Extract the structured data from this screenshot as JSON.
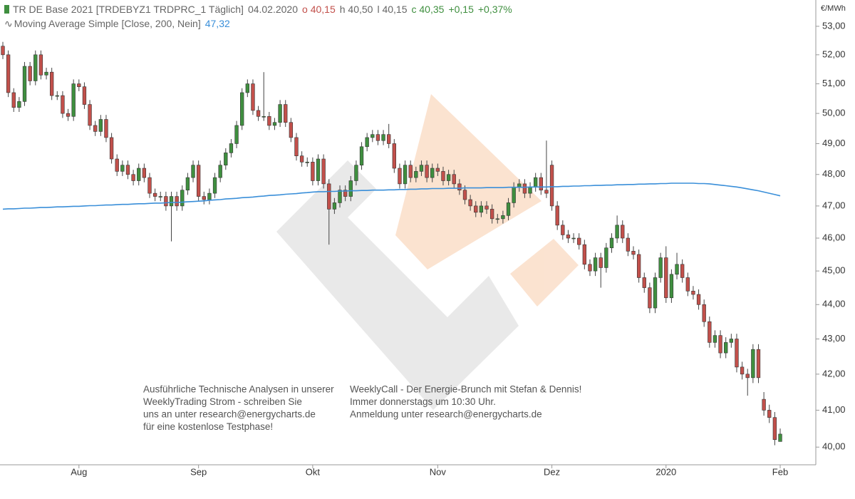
{
  "chart_data": {
    "type": "candlestick",
    "header": {
      "title": "TR DE Base 2021 [TRDEBYZ1 TRDPRC_1 Täglich]",
      "date": "04.02.2020",
      "open": {
        "value": 40.15,
        "label": "o 40,15"
      },
      "high": {
        "value": 40.5,
        "label": "h 40,50"
      },
      "low": {
        "value": 40.15,
        "label": "l 40,15"
      },
      "close": {
        "value": 40.35,
        "label": "c 40,35"
      },
      "change": {
        "value": 0.15,
        "label": "+0,15"
      },
      "change_pct": {
        "value": 0.37,
        "label": "+0,37%"
      }
    },
    "unit": "€/MWh",
    "log_scale": true,
    "up_color": "#3f8f3f",
    "down_color": "#c2504b",
    "grid": false,
    "categories": [
      null,
      null,
      null,
      null,
      null,
      null,
      null,
      null,
      null,
      null,
      null,
      null,
      null,
      null,
      "Aug",
      null,
      null,
      null,
      null,
      null,
      null,
      null,
      null,
      null,
      null,
      null,
      null,
      null,
      null,
      null,
      null,
      null,
      null,
      null,
      null,
      null,
      "Sep",
      null,
      null,
      null,
      null,
      null,
      null,
      null,
      null,
      null,
      null,
      null,
      null,
      null,
      null,
      null,
      null,
      null,
      null,
      null,
      null,
      "Okt",
      null,
      null,
      null,
      null,
      null,
      null,
      null,
      null,
      null,
      null,
      null,
      null,
      null,
      null,
      null,
      null,
      null,
      null,
      null,
      null,
      null,
      null,
      "Nov",
      null,
      null,
      null,
      null,
      null,
      null,
      null,
      null,
      null,
      null,
      null,
      null,
      null,
      null,
      null,
      null,
      null,
      null,
      null,
      null,
      "Dez",
      null,
      null,
      null,
      null,
      null,
      null,
      null,
      null,
      null,
      null,
      null,
      null,
      null,
      null,
      null,
      null,
      null,
      null,
      null,
      null,
      "2020",
      null,
      null,
      null,
      null,
      null,
      null,
      null,
      null,
      null,
      null,
      null,
      null,
      null,
      null,
      null,
      null,
      null,
      null,
      null,
      null,
      "Feb"
    ],
    "candles": {
      "open": [
        52.3,
        52.0,
        50.7,
        50.2,
        50.4,
        51.6,
        51.1,
        52.0,
        51.3,
        51.4,
        50.6,
        50.6,
        50.0,
        49.9,
        51.0,
        50.9,
        50.3,
        49.6,
        49.4,
        49.8,
        49.2,
        48.5,
        48.1,
        48.3,
        48.0,
        47.8,
        48.2,
        47.9,
        47.4,
        47.3,
        47.3,
        47.0,
        47.3,
        47.0,
        47.5,
        47.9,
        48.3,
        47.3,
        47.2,
        47.4,
        47.9,
        48.3,
        48.7,
        49.0,
        49.6,
        50.7,
        51.0,
        50.1,
        49.9,
        49.9,
        49.6,
        49.7,
        50.3,
        49.7,
        49.2,
        48.6,
        48.4,
        48.4,
        47.8,
        48.5,
        47.7,
        46.9,
        47.1,
        47.5,
        47.3,
        47.8,
        48.3,
        48.9,
        49.2,
        49.3,
        49.1,
        49.3,
        49.0,
        48.2,
        47.7,
        48.3,
        47.9,
        48.1,
        48.3,
        47.9,
        48.2,
        48.1,
        47.8,
        48.0,
        47.7,
        47.5,
        47.2,
        47.0,
        46.8,
        47.0,
        46.9,
        46.6,
        46.6,
        46.7,
        47.1,
        47.6,
        47.7,
        47.4,
        47.6,
        47.9,
        47.5,
        48.3,
        47.0,
        46.4,
        46.1,
        46.0,
        46.0,
        45.8,
        45.2,
        45.0,
        45.4,
        45.1,
        45.7,
        46.0,
        46.4,
        46.0,
        45.6,
        45.5,
        44.8,
        44.5,
        43.9,
        44.8,
        45.4,
        44.2,
        44.9,
        45.2,
        44.8,
        44.4,
        44.3,
        44.0,
        43.5,
        42.9,
        43.1,
        42.6,
        42.9,
        43.0,
        42.2,
        42.0,
        41.9,
        42.7,
        41.3,
        41.0,
        40.8,
        40.15
      ],
      "high": [
        52.45,
        52.15,
        50.85,
        50.55,
        51.75,
        51.75,
        52.15,
        52.15,
        51.55,
        51.55,
        50.75,
        50.75,
        50.15,
        51.15,
        51.15,
        51.05,
        50.45,
        49.75,
        49.95,
        49.95,
        49.35,
        48.65,
        48.45,
        48.45,
        48.15,
        48.35,
        48.35,
        48.05,
        47.55,
        47.45,
        47.45,
        47.45,
        47.45,
        47.65,
        48.05,
        48.45,
        48.45,
        47.45,
        47.55,
        48.05,
        48.45,
        48.85,
        49.15,
        49.75,
        50.85,
        51.15,
        51.15,
        50.25,
        51.4,
        50.05,
        49.85,
        50.45,
        50.45,
        49.85,
        49.35,
        48.75,
        48.55,
        48.55,
        48.65,
        48.65,
        47.85,
        47.25,
        47.65,
        47.65,
        47.95,
        48.45,
        49.05,
        49.35,
        49.45,
        49.45,
        49.45,
        49.65,
        49.15,
        48.35,
        48.45,
        48.45,
        48.25,
        48.45,
        48.45,
        48.35,
        48.35,
        48.25,
        48.15,
        48.15,
        47.85,
        47.65,
        47.35,
        47.15,
        47.15,
        47.15,
        47.05,
        46.75,
        46.85,
        47.25,
        47.75,
        47.85,
        47.85,
        47.75,
        48.05,
        48.05,
        49.1,
        48.45,
        47.15,
        46.55,
        46.25,
        46.15,
        46.15,
        45.95,
        45.35,
        45.55,
        45.55,
        45.85,
        46.15,
        46.7,
        46.55,
        46.15,
        45.75,
        45.65,
        44.95,
        44.65,
        44.95,
        45.55,
        45.75,
        45.05,
        45.55,
        45.35,
        44.95,
        44.55,
        44.45,
        44.15,
        43.65,
        43.25,
        43.25,
        43.05,
        43.15,
        43.15,
        42.35,
        42.15,
        42.85,
        42.85,
        41.5,
        41.15,
        40.95,
        40.5
      ],
      "low": [
        51.85,
        50.55,
        50.05,
        50.05,
        50.25,
        50.95,
        50.95,
        51.15,
        51.15,
        50.45,
        50.45,
        49.85,
        49.75,
        49.75,
        50.75,
        50.15,
        49.45,
        49.25,
        49.25,
        49.05,
        48.35,
        47.95,
        47.95,
        47.85,
        47.65,
        47.65,
        47.75,
        47.25,
        47.15,
        47.15,
        46.85,
        45.9,
        46.85,
        46.85,
        47.35,
        47.75,
        47.15,
        47.05,
        47.05,
        47.25,
        47.75,
        48.15,
        48.55,
        48.85,
        49.45,
        50.55,
        49.95,
        49.75,
        49.75,
        49.45,
        49.45,
        49.55,
        49.55,
        49.05,
        48.45,
        48.25,
        48.25,
        47.65,
        47.65,
        47.55,
        45.8,
        46.75,
        46.95,
        47.15,
        47.15,
        47.65,
        48.15,
        48.75,
        49.05,
        48.95,
        48.95,
        48.85,
        48.05,
        47.55,
        47.55,
        47.75,
        47.75,
        47.95,
        47.75,
        47.75,
        47.95,
        47.65,
        47.65,
        47.55,
        47.35,
        47.05,
        46.85,
        46.65,
        46.65,
        46.75,
        46.45,
        46.45,
        46.45,
        46.55,
        46.95,
        47.45,
        47.25,
        47.25,
        47.45,
        47.35,
        47.25,
        46.85,
        46.25,
        45.95,
        45.85,
        45.85,
        45.65,
        45.05,
        44.85,
        44.85,
        44.5,
        44.95,
        45.55,
        45.85,
        45.85,
        45.45,
        45.35,
        44.65,
        44.35,
        43.75,
        43.75,
        44.65,
        44.05,
        44.05,
        44.75,
        44.65,
        44.25,
        44.15,
        43.85,
        43.35,
        42.75,
        42.75,
        42.45,
        42.45,
        42.75,
        42.05,
        41.85,
        41.4,
        41.75,
        41.75,
        40.85,
        40.65,
        40.05,
        40.15
      ],
      "close": [
        52.0,
        50.7,
        50.2,
        50.4,
        51.6,
        51.1,
        52.0,
        51.3,
        51.4,
        50.6,
        50.6,
        50.0,
        49.9,
        51.0,
        50.9,
        50.3,
        49.6,
        49.4,
        49.8,
        49.2,
        48.5,
        48.1,
        48.3,
        48.0,
        47.8,
        48.2,
        47.9,
        47.4,
        47.3,
        47.3,
        47.0,
        47.3,
        47.0,
        47.5,
        47.9,
        48.3,
        47.3,
        47.2,
        47.4,
        47.9,
        48.3,
        48.7,
        49.0,
        49.6,
        50.7,
        51.0,
        50.1,
        49.9,
        49.9,
        49.6,
        49.7,
        50.3,
        49.7,
        49.2,
        48.6,
        48.4,
        48.4,
        47.8,
        48.5,
        47.7,
        46.9,
        47.1,
        47.5,
        47.3,
        47.8,
        48.3,
        48.9,
        49.2,
        49.3,
        49.1,
        49.3,
        49.0,
        48.2,
        47.7,
        48.3,
        47.9,
        48.1,
        48.3,
        47.9,
        48.2,
        48.1,
        47.8,
        48.0,
        47.7,
        47.5,
        47.2,
        47.0,
        46.8,
        47.0,
        46.9,
        46.6,
        46.6,
        46.7,
        47.1,
        47.6,
        47.7,
        47.4,
        47.6,
        47.9,
        47.5,
        47.4,
        47.0,
        46.4,
        46.1,
        46.0,
        46.0,
        45.8,
        45.2,
        45.0,
        45.4,
        45.1,
        45.7,
        46.0,
        46.4,
        46.0,
        45.6,
        45.5,
        44.8,
        44.5,
        43.9,
        44.8,
        45.4,
        44.2,
        44.9,
        45.2,
        44.8,
        44.4,
        44.3,
        44.0,
        43.5,
        42.9,
        43.1,
        42.6,
        42.9,
        43.0,
        42.2,
        42.0,
        41.9,
        42.7,
        41.9,
        41.0,
        40.8,
        40.2,
        40.35
      ]
    },
    "ma": {
      "name": "Moving Average Simple [Close, 200, Nein]",
      "color": "#3a8fd9",
      "last": {
        "value": 47.32,
        "label": "47,32"
      },
      "values": [
        46.9,
        46.91,
        46.91,
        46.92,
        46.93,
        46.93,
        46.94,
        46.95,
        46.95,
        46.96,
        46.97,
        46.97,
        46.98,
        46.99,
        46.99,
        47.0,
        47.01,
        47.01,
        47.02,
        47.03,
        47.03,
        47.04,
        47.05,
        47.05,
        47.06,
        47.07,
        47.07,
        47.08,
        47.09,
        47.09,
        47.1,
        47.11,
        47.11,
        47.12,
        47.13,
        47.14,
        47.15,
        47.16,
        47.18,
        47.19,
        47.2,
        47.22,
        47.23,
        47.24,
        47.26,
        47.27,
        47.28,
        47.3,
        47.31,
        47.33,
        47.34,
        47.35,
        47.37,
        47.38,
        47.39,
        47.41,
        47.42,
        47.44,
        47.45,
        47.45,
        47.46,
        47.46,
        47.47,
        47.47,
        47.48,
        47.48,
        47.49,
        47.49,
        47.5,
        47.5,
        47.5,
        47.51,
        47.51,
        47.52,
        47.52,
        47.53,
        47.53,
        47.54,
        47.54,
        47.55,
        47.55,
        47.55,
        47.56,
        47.56,
        47.56,
        47.57,
        47.57,
        47.57,
        47.57,
        47.58,
        47.58,
        47.58,
        47.58,
        47.59,
        47.59,
        47.59,
        47.59,
        47.6,
        47.6,
        47.6,
        47.6,
        47.61,
        47.61,
        47.62,
        47.62,
        47.63,
        47.63,
        47.64,
        47.64,
        47.65,
        47.65,
        47.66,
        47.66,
        47.67,
        47.67,
        47.68,
        47.68,
        47.69,
        47.69,
        47.7,
        47.7,
        47.71,
        47.71,
        47.72,
        47.72,
        47.72,
        47.72,
        47.72,
        47.71,
        47.71,
        47.7,
        47.68,
        47.66,
        47.64,
        47.62,
        47.6,
        47.57,
        47.54,
        47.51,
        47.48,
        47.44,
        47.4,
        47.36,
        47.32
      ]
    },
    "ylim": [
      39.53,
      53.94
    ],
    "yticks": [
      {
        "value": 40,
        "label": "40,00"
      },
      {
        "value": 41,
        "label": "41,00"
      },
      {
        "value": 42,
        "label": "42,00"
      },
      {
        "value": 43,
        "label": "43,00"
      },
      {
        "value": 44,
        "label": "44,00"
      },
      {
        "value": 45,
        "label": "45,00"
      },
      {
        "value": 46,
        "label": "46,00"
      },
      {
        "value": 47,
        "label": "47,00"
      },
      {
        "value": 48,
        "label": "48,00"
      },
      {
        "value": 49,
        "label": "49,00"
      },
      {
        "value": 50,
        "label": "50,00"
      },
      {
        "value": 51,
        "label": "51,00"
      },
      {
        "value": 52,
        "label": "52,00"
      },
      {
        "value": 53,
        "label": "53,00"
      }
    ],
    "annotations": [
      [
        "Ausführliche Technische Analysen in unserer",
        "WeeklyTrading Strom - schreiben Sie",
        "uns an unter research@energycharts.de",
        "für eine kostenlose Testphase!"
      ],
      [
        "WeeklyCall - Der Energie-Brunch mit Stefan & Dennis!",
        "Immer donnerstags um 10:30 Uhr.",
        "Anmeldung unter research@energycharts.de"
      ]
    ]
  }
}
